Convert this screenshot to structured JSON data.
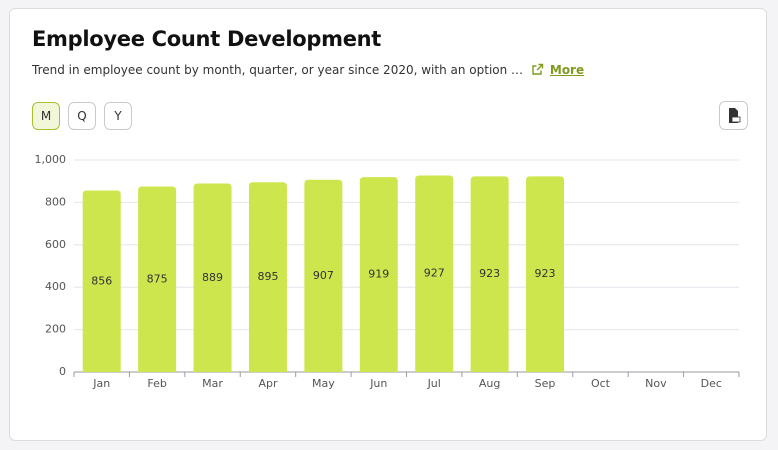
{
  "header": {
    "title": "Employee Count Development",
    "subtitle": "Trend in employee count by month, quarter, or year since 2020, with an option …",
    "more": "More"
  },
  "buttons": [
    "M",
    "Q",
    "Y"
  ],
  "chart_data": {
    "type": "bar",
    "categories": [
      "Jan",
      "Feb",
      "Mar",
      "Apr",
      "May",
      "Jun",
      "Jul",
      "Aug",
      "Sep",
      "Oct",
      "Nov",
      "Dec"
    ],
    "values": [
      856,
      875,
      889,
      895,
      907,
      919,
      927,
      923,
      923,
      null,
      null,
      null
    ],
    "color": "#cde64e",
    "ylim": [
      0,
      1000
    ],
    "yticks": [
      0,
      200,
      400,
      600,
      800,
      {
        "value": 1000,
        "label": "1,000"
      }
    ],
    "grid": true
  }
}
